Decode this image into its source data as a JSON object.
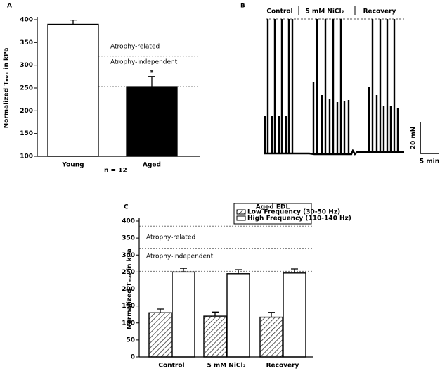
{
  "chart_data": [
    {
      "type": "bar",
      "label": "A",
      "y_label": "Normalized Tₘₐₓ in kPa",
      "categories": [
        "Young",
        "Aged"
      ],
      "values": [
        390,
        253
      ],
      "errors": [
        9,
        22
      ],
      "colors": [
        "#ffffff",
        "#000000"
      ],
      "ylim": [
        100,
        400
      ],
      "yticks": [
        100,
        150,
        200,
        250,
        300,
        350,
        400
      ],
      "ref_lines": [
        320,
        253
      ],
      "annotations": [
        "Atrophy-related",
        "Atrophy-independent",
        "*",
        "n = 12"
      ]
    },
    {
      "type": "trace",
      "label": "B",
      "segments": [
        "Control",
        "5 mM NiCl₂",
        "Recovery"
      ],
      "scale_labels": [
        "20 mN",
        "5 min"
      ]
    },
    {
      "type": "grouped_bar",
      "label": "C",
      "y_label": "Normalized Tₘₐₓ in kPa",
      "categories": [
        "Control",
        "5 mM NiCl₂",
        "Recovery"
      ],
      "legend_title": "Aged EDL",
      "series": [
        {
          "name": "Low Frequency (30-50 Hz)",
          "color": "#ffffff",
          "hatch": true,
          "values": [
            130,
            120,
            117
          ],
          "errors": [
            11,
            12,
            14
          ]
        },
        {
          "name": "High Frequency (110-140 Hz)",
          "color": "#ffffff",
          "hatch": false,
          "values": [
            250,
            245,
            247
          ],
          "errors": [
            11,
            12,
            12
          ]
        }
      ],
      "ylim": [
        0,
        400
      ],
      "yticks": [
        0,
        50,
        100,
        150,
        200,
        250,
        300,
        350,
        400
      ],
      "ref_lines": [
        385,
        320,
        252
      ],
      "annotations": [
        "Atrophy-related",
        "Atrophy-independent"
      ]
    }
  ]
}
